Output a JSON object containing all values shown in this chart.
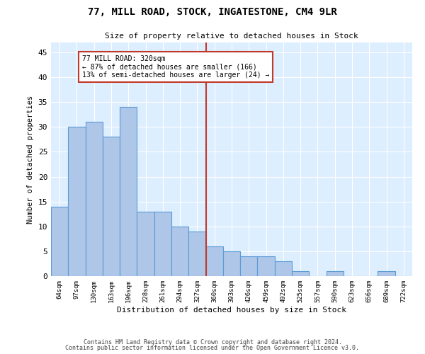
{
  "title1": "77, MILL ROAD, STOCK, INGATESTONE, CM4 9LR",
  "title2": "Size of property relative to detached houses in Stock",
  "xlabel": "Distribution of detached houses by size in Stock",
  "ylabel": "Number of detached properties",
  "categories": [
    "64sqm",
    "97sqm",
    "130sqm",
    "163sqm",
    "196sqm",
    "228sqm",
    "261sqm",
    "294sqm",
    "327sqm",
    "360sqm",
    "393sqm",
    "426sqm",
    "459sqm",
    "492sqm",
    "525sqm",
    "557sqm",
    "590sqm",
    "623sqm",
    "656sqm",
    "689sqm",
    "722sqm"
  ],
  "values": [
    14,
    30,
    31,
    28,
    34,
    13,
    13,
    10,
    9,
    6,
    5,
    4,
    4,
    3,
    1,
    0,
    1,
    0,
    0,
    1,
    0
  ],
  "bar_color": "#aec6e8",
  "bar_edge_color": "#5b9bd5",
  "background_color": "#ddeeff",
  "grid_color": "#ffffff",
  "vline_x": 8.5,
  "vline_color": "#c0392b",
  "annotation_text": "77 MILL ROAD: 320sqm\n← 87% of detached houses are smaller (166)\n13% of semi-detached houses are larger (24) →",
  "annotation_box_color": "#ffffff",
  "annotation_box_edge": "#c0392b",
  "ylim": [
    0,
    47
  ],
  "yticks": [
    0,
    5,
    10,
    15,
    20,
    25,
    30,
    35,
    40,
    45
  ],
  "footer1": "Contains HM Land Registry data © Crown copyright and database right 2024.",
  "footer2": "Contains public sector information licensed under the Open Government Licence v3.0."
}
